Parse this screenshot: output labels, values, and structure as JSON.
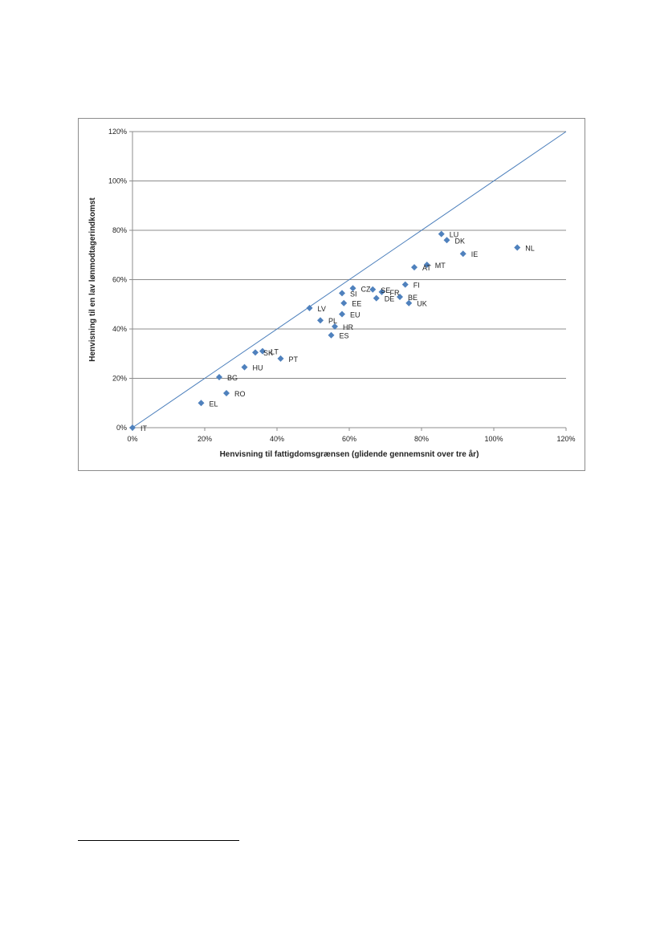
{
  "chart_data": {
    "type": "scatter",
    "title": "",
    "xlabel": "Henvisning til fattigdomsgrænsen (glidende gennemsnit over tre år)",
    "ylabel": "Henvisning til en lav lønmodtagerindkomst",
    "xlim": [
      0,
      1.2
    ],
    "ylim": [
      0,
      1.2
    ],
    "x_ticks": [
      0,
      0.2,
      0.4,
      0.6,
      0.8,
      1.0,
      1.2
    ],
    "y_ticks": [
      0,
      0.2,
      0.4,
      0.6,
      0.8,
      1.0,
      1.2
    ],
    "x_tick_labels": [
      "0%",
      "20%",
      "40%",
      "60%",
      "80%",
      "100%",
      "120%"
    ],
    "y_tick_labels": [
      "0%",
      "20%",
      "40%",
      "60%",
      "80%",
      "100%",
      "120%"
    ],
    "grid": "horizontal",
    "legend": "none",
    "reference_line": {
      "x": [
        0,
        1.2
      ],
      "y": [
        0,
        1.2
      ]
    },
    "marker_color": "#4f81bd",
    "line_color": "#4a7ebb",
    "points": [
      {
        "label": "IT",
        "x": 0.0,
        "y": 0.0
      },
      {
        "label": "EL",
        "x": 0.19,
        "y": 0.1
      },
      {
        "label": "RO",
        "x": 0.26,
        "y": 0.14
      },
      {
        "label": "BG",
        "x": 0.24,
        "y": 0.205
      },
      {
        "label": "HU",
        "x": 0.31,
        "y": 0.245
      },
      {
        "label": "SK",
        "x": 0.34,
        "y": 0.305
      },
      {
        "label": "LT",
        "x": 0.36,
        "y": 0.31
      },
      {
        "label": "PT",
        "x": 0.41,
        "y": 0.28
      },
      {
        "label": "LV",
        "x": 0.49,
        "y": 0.485
      },
      {
        "label": "PL",
        "x": 0.52,
        "y": 0.435
      },
      {
        "label": "ES",
        "x": 0.55,
        "y": 0.375
      },
      {
        "label": "HR",
        "x": 0.56,
        "y": 0.41
      },
      {
        "label": "EU",
        "x": 0.58,
        "y": 0.46
      },
      {
        "label": "EE",
        "x": 0.585,
        "y": 0.505
      },
      {
        "label": "SI",
        "x": 0.58,
        "y": 0.545
      },
      {
        "label": "CZ",
        "x": 0.61,
        "y": 0.565
      },
      {
        "label": "SE",
        "x": 0.665,
        "y": 0.56
      },
      {
        "label": "FR",
        "x": 0.69,
        "y": 0.55
      },
      {
        "label": "DE",
        "x": 0.675,
        "y": 0.525
      },
      {
        "label": "BE",
        "x": 0.74,
        "y": 0.53
      },
      {
        "label": "UK",
        "x": 0.765,
        "y": 0.505
      },
      {
        "label": "FI",
        "x": 0.755,
        "y": 0.58
      },
      {
        "label": "AT",
        "x": 0.78,
        "y": 0.65
      },
      {
        "label": "MT",
        "x": 0.815,
        "y": 0.66
      },
      {
        "label": "LU",
        "x": 0.855,
        "y": 0.785
      },
      {
        "label": "DK",
        "x": 0.87,
        "y": 0.76
      },
      {
        "label": "IE",
        "x": 0.915,
        "y": 0.705
      },
      {
        "label": "NL",
        "x": 1.065,
        "y": 0.73
      }
    ]
  }
}
